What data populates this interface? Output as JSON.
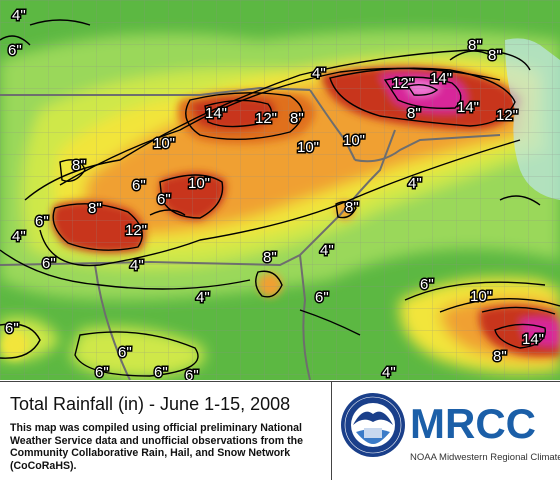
{
  "map": {
    "contour_labels": [
      {
        "text": "4\"",
        "level": 4
      },
      {
        "text": "6\"",
        "level": 6
      },
      {
        "text": "8\"",
        "level": 8
      },
      {
        "text": "4\"",
        "level": 4
      },
      {
        "text": "14\"",
        "level": 14
      },
      {
        "text": "12\"",
        "level": 12
      },
      {
        "text": "8\"",
        "level": 8
      },
      {
        "text": "12\"",
        "level": 12
      },
      {
        "text": "14\"",
        "level": 14
      },
      {
        "text": "8\"",
        "level": 8
      },
      {
        "text": "14\"",
        "level": 14
      },
      {
        "text": "12\"",
        "level": 12
      },
      {
        "text": "10\"",
        "level": 10
      },
      {
        "text": "10\"",
        "level": 10
      },
      {
        "text": "10\"",
        "level": 10
      },
      {
        "text": "8\"",
        "level": 8
      },
      {
        "text": "6\"",
        "level": 6
      },
      {
        "text": "10\"",
        "level": 10
      },
      {
        "text": "6\"",
        "level": 6
      },
      {
        "text": "4\"",
        "level": 4
      },
      {
        "text": "8\"",
        "level": 8
      },
      {
        "text": "6\"",
        "level": 6
      },
      {
        "text": "12\"",
        "level": 12
      },
      {
        "text": "4\"",
        "level": 4
      },
      {
        "text": "8\"",
        "level": 8
      },
      {
        "text": "4\"",
        "level": 4
      },
      {
        "text": "8\"",
        "level": 8
      },
      {
        "text": "6\"",
        "level": 6
      },
      {
        "text": "4\"",
        "level": 4
      },
      {
        "text": "6\"",
        "level": 6
      },
      {
        "text": "4\"",
        "level": 4
      },
      {
        "text": "10\"",
        "level": 10
      },
      {
        "text": "6\"",
        "level": 6
      },
      {
        "text": "6\"",
        "level": 6
      },
      {
        "text": "6\"",
        "level": 6
      },
      {
        "text": "6\"",
        "level": 6
      },
      {
        "text": "8\"",
        "level": 8
      },
      {
        "text": "14\"",
        "level": 14
      },
      {
        "text": "8\"",
        "level": 8
      },
      {
        "text": "6\"",
        "level": 6
      },
      {
        "text": "4\"",
        "level": 4
      },
      {
        "text": "6\"",
        "level": 6
      }
    ],
    "colors": {
      "background_green": "#5cb842",
      "light_green": "#9ad85a",
      "yellow_green": "#cfe84a",
      "yellow": "#f2e53a",
      "orange": "#f0a030",
      "dark_orange": "#e0701c",
      "red": "#c8361a",
      "magenta": "#d8269a",
      "pink": "#f07ad8",
      "lake_blue": "#bfe6f2",
      "county_lines": "#8c8c8c",
      "state_lines": "#6e6e6e",
      "contour_lines": "#000000"
    }
  },
  "footer": {
    "title": "Total Rainfall (in) - June 1-15, 2008",
    "description": "This map was compiled using official preliminary National Weather Service data and unofficial observations from the Community Collaborative Rain, Hail, and Snow Network (CoCoRaHS).",
    "brand": "MRCC",
    "org_name": "NOAA Midwestern Regional Climate Center",
    "seal_text": "NOAA Midwestern Regional Climate Center"
  }
}
